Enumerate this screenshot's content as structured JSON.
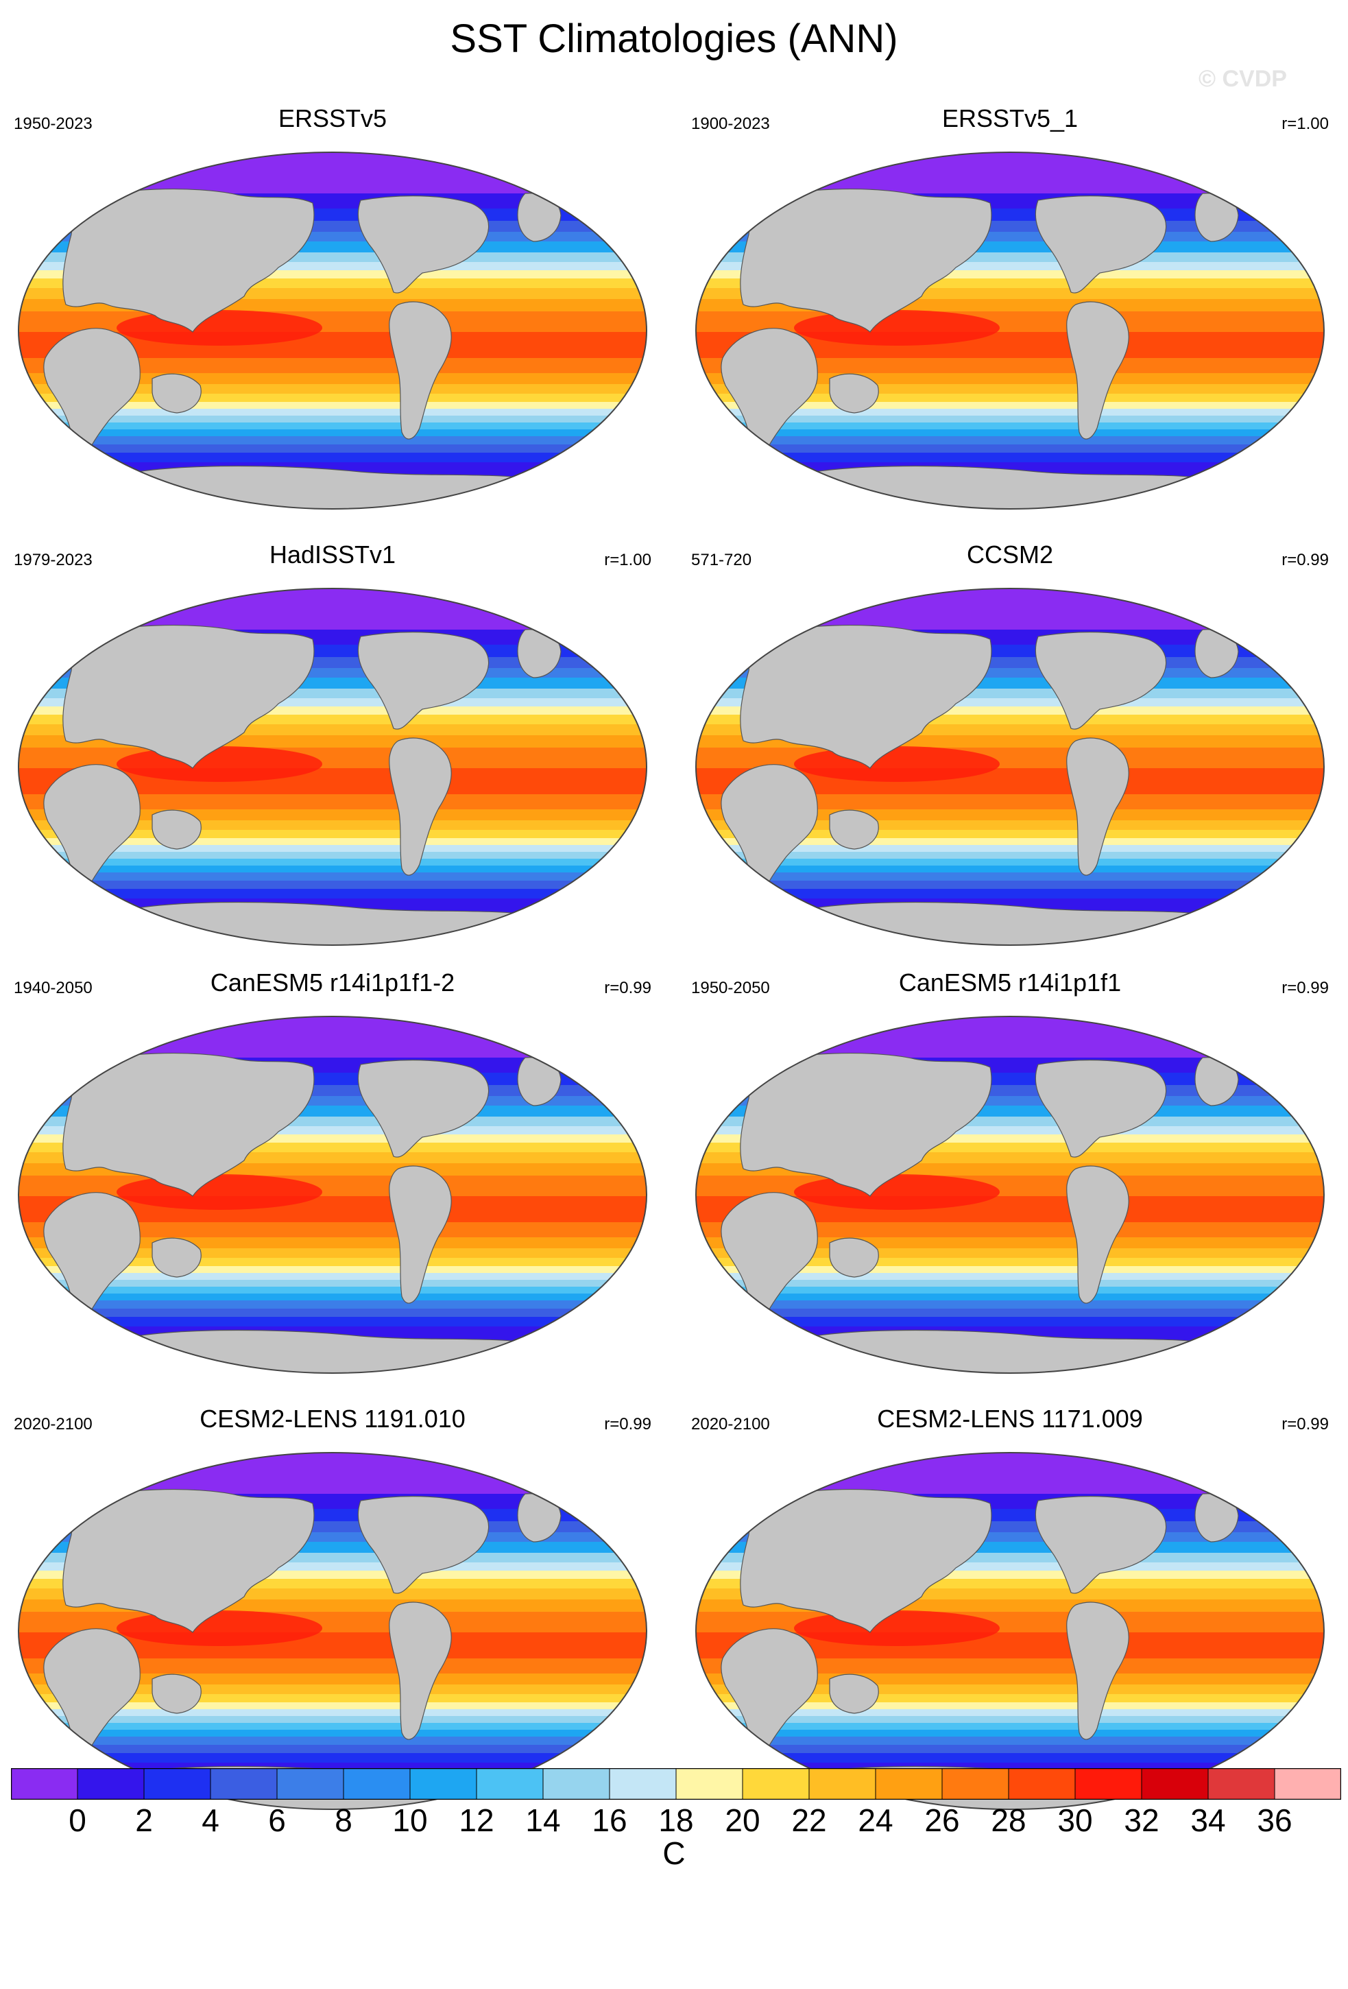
{
  "figure": {
    "title": "SST Climatologies (ANN)",
    "watermark": "© CVDP"
  },
  "panels": [
    {
      "title": "ERSSTv5",
      "years": "1950-2023",
      "corr": ""
    },
    {
      "title": "ERSSTv5_1",
      "years": "1900-2023",
      "corr": "r=1.00"
    },
    {
      "title": "HadISSTv1",
      "years": "1979-2023",
      "corr": "r=1.00"
    },
    {
      "title": "CCSM2",
      "years": "571-720",
      "corr": "r=0.99"
    },
    {
      "title": "CanESM5 r14i1p1f1-2",
      "years": "1940-2050",
      "corr": "r=0.99"
    },
    {
      "title": "CanESM5 r14i1p1f1",
      "years": "1950-2050",
      "corr": "r=0.99"
    },
    {
      "title": "CESM2-LENS 1191.010",
      "years": "2020-2100",
      "corr": "r=0.99"
    },
    {
      "title": "CESM2-LENS 1171.009",
      "years": "2020-2100",
      "corr": "r=0.99"
    }
  ],
  "colorbar": {
    "ticks": [
      "0",
      "2",
      "4",
      "6",
      "8",
      "10",
      "12",
      "14",
      "16",
      "18",
      "20",
      "22",
      "24",
      "26",
      "28",
      "30",
      "32",
      "34",
      "36"
    ],
    "unit": "C",
    "colors": [
      "#8a2cf2",
      "#3415ec",
      "#1e30f2",
      "#3b5ee2",
      "#3c7ee8",
      "#2a8ef2",
      "#1ea6f2",
      "#4cc2f4",
      "#96d4ee",
      "#c4e6f6",
      "#fff6a6",
      "#ffd83a",
      "#ffbe24",
      "#ffa012",
      "#ff7a10",
      "#ff4a0a",
      "#ff1a0a",
      "#d8000a",
      "#e0383a",
      "#ffb0b0"
    ]
  },
  "map_style": {
    "land": "#c4c4c4",
    "land_edge": "#555555",
    "outline": "#444444",
    "sea_ice": "#ffffff"
  }
}
